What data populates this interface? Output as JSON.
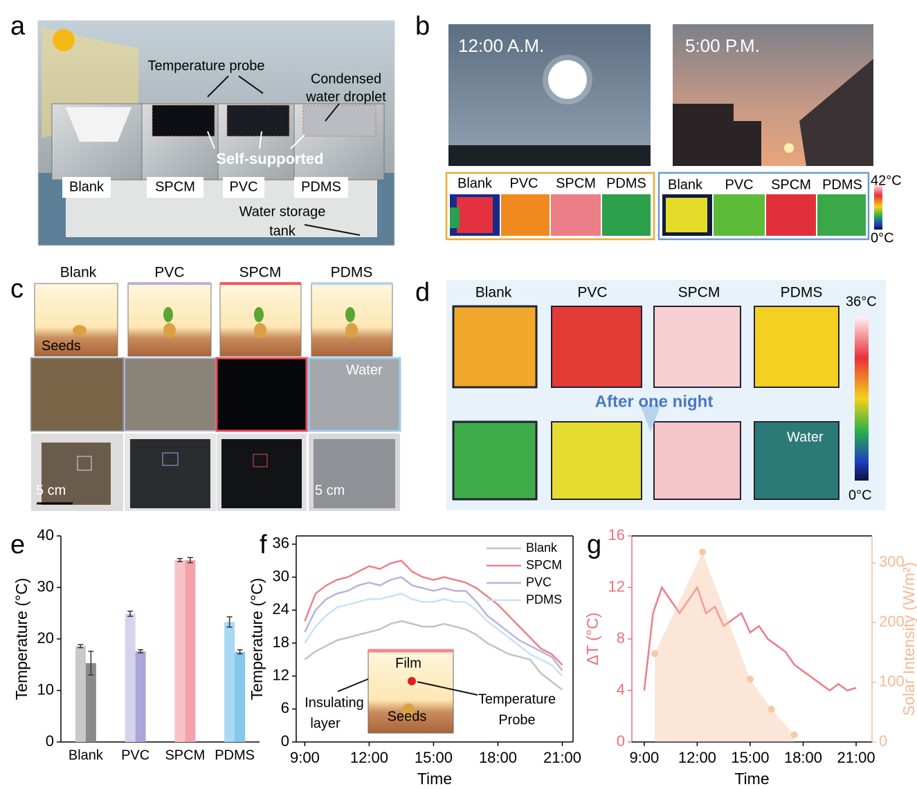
{
  "panel_labels": [
    "a",
    "b",
    "c",
    "d",
    "e",
    "f",
    "g"
  ],
  "panel_a": {
    "probe": "Temperature probe",
    "droplet": [
      "Condensed",
      "water droplet"
    ],
    "self_supported": "Self-supported",
    "boxes": [
      "Blank",
      "SPCM",
      "PVC",
      "PDMS"
    ],
    "tank": [
      "Water storage",
      "tank"
    ]
  },
  "panel_b": {
    "times": [
      "12:00 A.M.",
      "5:00 P.M."
    ],
    "noon_labels": [
      "Blank",
      "PVC",
      "SPCM",
      "PDMS"
    ],
    "evening_labels": [
      "Blank",
      "PVC",
      "SPCM",
      "PDMS"
    ],
    "scale": [
      "42°C",
      "0°C"
    ]
  },
  "panel_c": {
    "headers": [
      "Blank",
      "PVC",
      "SPCM",
      "PDMS"
    ],
    "seeds": "Seeds",
    "water": "Water",
    "scale_bars": [
      "5 cm",
      "5 cm"
    ]
  },
  "panel_d": {
    "headers": [
      "Blank",
      "PVC",
      "SPCM",
      "PDMS"
    ],
    "scale": [
      "36°C",
      "0°C"
    ],
    "arrow": "After one night",
    "water": "Water"
  },
  "chart_data": [
    {
      "type": "bar",
      "ylabel": "Temperature (°C)",
      "categories": [
        "Blank",
        "PVC",
        "SPCM",
        "PDMS"
      ],
      "series": [
        {
          "values": [
            18.6,
            24.9,
            35.3,
            23.3
          ],
          "errors": [
            0.3,
            0.5,
            0.3,
            1.0
          ],
          "colors": [
            "#c9c9c9",
            "#d5d3ee",
            "#f8c3c8",
            "#a8d8f3"
          ]
        },
        {
          "values": [
            15.3,
            17.6,
            35.3,
            17.5
          ],
          "errors": [
            2.3,
            0.3,
            0.5,
            0.4
          ],
          "colors": [
            "#8a8a8a",
            "#aaa6d8",
            "#f3a2aa",
            "#85c7ee"
          ]
        }
      ],
      "ylim": [
        0,
        40
      ],
      "yticks": [
        0,
        10,
        20,
        30,
        40
      ]
    },
    {
      "type": "line",
      "xlabel": "Time",
      "ylabel": "Temperature (°C)",
      "x": [
        9,
        9.5,
        10,
        10.5,
        11,
        11.5,
        12,
        12.5,
        13,
        13.5,
        14,
        14.5,
        15,
        15.5,
        16,
        16.5,
        17,
        17.5,
        18,
        18.5,
        19,
        19.5,
        20,
        20.5,
        21
      ],
      "xlim": [
        8.6,
        21.5
      ],
      "xticks": [
        {
          "value": 9,
          "label": "9:00"
        },
        {
          "value": 12,
          "label": "12:00"
        },
        {
          "value": 15,
          "label": "15:00"
        },
        {
          "value": 18,
          "label": "18:00"
        },
        {
          "value": 21,
          "label": "21:00"
        }
      ],
      "ylim": [
        0,
        37.5
      ],
      "yticks": [
        0,
        6,
        12,
        18,
        24,
        30,
        36
      ],
      "legend": "upper right",
      "series": [
        {
          "name": "Blank",
          "color": "#c2c2c2",
          "values": [
            15,
            16.5,
            17.5,
            18.5,
            19,
            19.5,
            20,
            20.5,
            21.5,
            22,
            21.5,
            21,
            21,
            21.5,
            21,
            20.5,
            19.5,
            18,
            17,
            16,
            15.5,
            15,
            12.5,
            11,
            9.5
          ]
        },
        {
          "name": "SPCM",
          "color": "#ee7f88",
          "values": [
            22,
            27,
            28.5,
            29.5,
            30,
            31,
            32,
            31.5,
            32.5,
            33,
            31,
            30,
            29.5,
            30,
            29.5,
            29,
            28,
            26.5,
            25,
            23,
            21,
            19,
            17,
            16,
            14
          ]
        },
        {
          "name": "PVC",
          "color": "#b7b3dc",
          "values": [
            20,
            24,
            26,
            27,
            27.5,
            28.5,
            29,
            28.5,
            29.5,
            30,
            28.5,
            28,
            27.5,
            28,
            27.5,
            27.5,
            25.5,
            23,
            21.5,
            20,
            18.5,
            17.5,
            16.5,
            15.5,
            13
          ]
        },
        {
          "name": "PDMS",
          "color": "#c6e2f5",
          "values": [
            18,
            21,
            23,
            24.5,
            25,
            25.5,
            26,
            26,
            26.5,
            27,
            26,
            25.5,
            25.5,
            26,
            25.5,
            25.5,
            24,
            22,
            20.5,
            19,
            17.5,
            16,
            15,
            14,
            12
          ]
        }
      ],
      "inset": {
        "film": "Film",
        "insulating": [
          "Insulating",
          "layer"
        ],
        "seeds": "Seeds",
        "probe": [
          "Temperature",
          "Probe"
        ]
      }
    },
    {
      "type": "line",
      "xlabel": "Time",
      "ylabel": "ΔT (°C)",
      "y2label": "Solar Intensity (W/m²)",
      "x": [
        9,
        9.5,
        10,
        10.5,
        11,
        11.5,
        12,
        12.5,
        13,
        13.5,
        14,
        14.5,
        15,
        15.5,
        16,
        16.5,
        17,
        17.5,
        18,
        18.5,
        19,
        19.5,
        20,
        20.5,
        21
      ],
      "xlim": [
        8.3,
        21.9
      ],
      "xticks": [
        {
          "value": 9,
          "label": "9:00"
        },
        {
          "value": 12,
          "label": "12:00"
        },
        {
          "value": 15,
          "label": "15:00"
        },
        {
          "value": 18,
          "label": "18:00"
        },
        {
          "value": 21,
          "label": "21:00"
        }
      ],
      "ylim": [
        0,
        16
      ],
      "yticks": [
        0,
        4,
        8,
        12,
        16
      ],
      "y2lim": [
        0,
        345
      ],
      "y2ticks": [
        0,
        100,
        200,
        300
      ],
      "axis_colors": {
        "y": "#ee6f7b",
        "y2": "#f5b894"
      },
      "series": [
        {
          "color": "#ef7b86",
          "values": [
            4,
            10,
            12,
            11,
            10,
            11,
            12,
            10,
            10.5,
            9,
            9.5,
            10,
            8.5,
            9,
            8,
            7.5,
            7,
            6,
            5.5,
            5,
            4.5,
            4,
            4.5,
            4,
            4.2
          ]
        },
        {
          "axis": "y2",
          "style": "area",
          "color": "#f6c8a8",
          "x": [
            9.6,
            12.3,
            15,
            16.2,
            17.5
          ],
          "values": [
            148,
            318,
            105,
            55,
            12
          ]
        }
      ]
    }
  ]
}
